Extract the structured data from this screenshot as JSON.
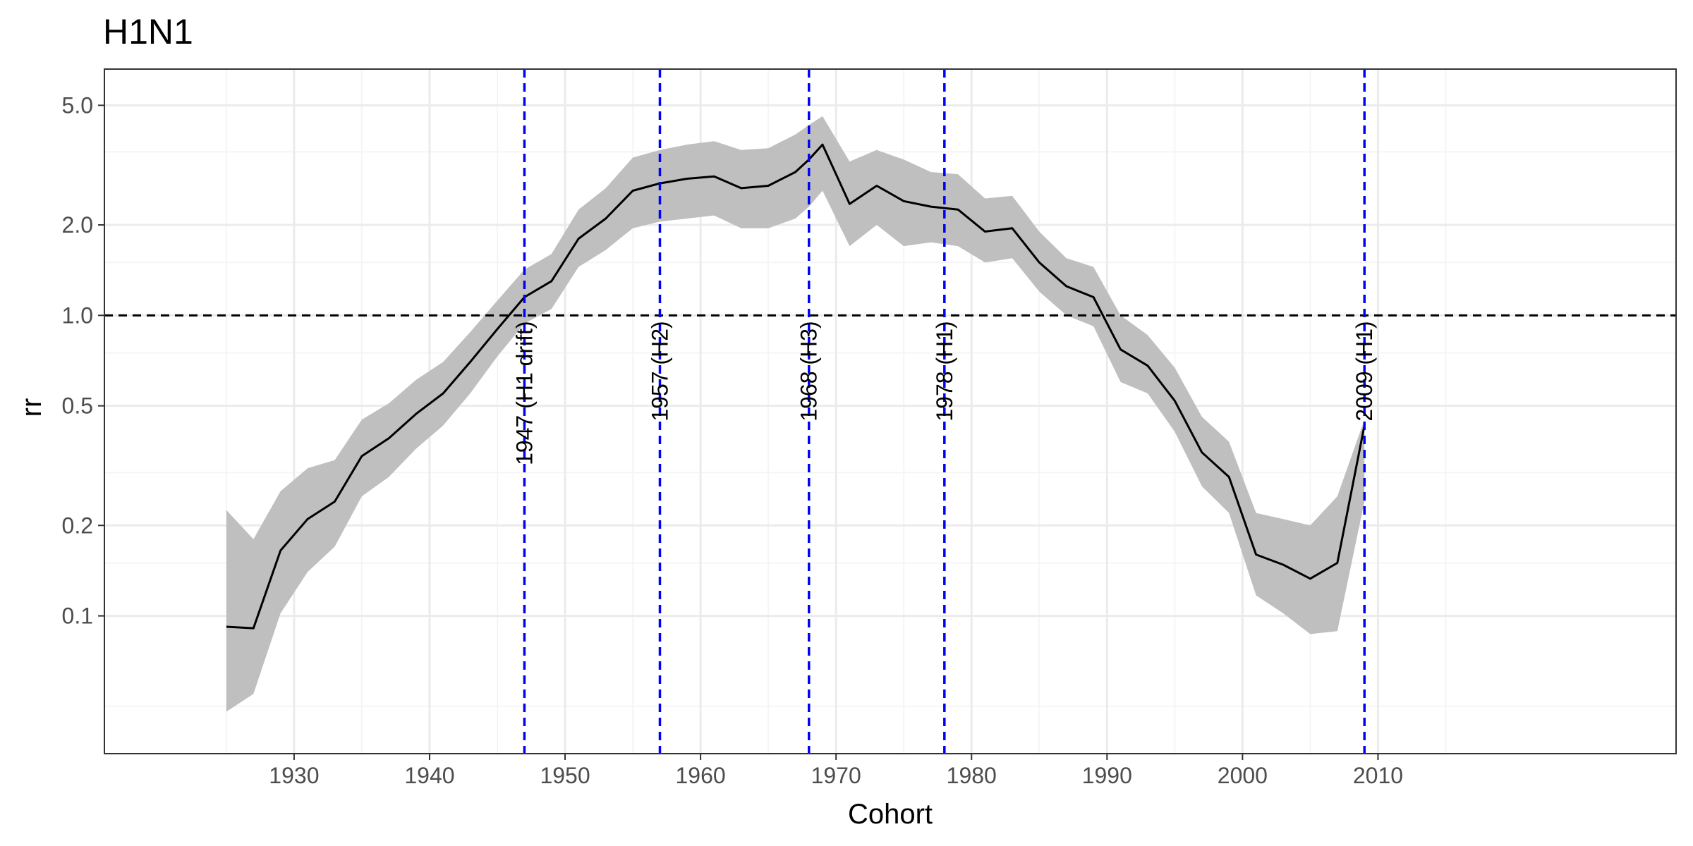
{
  "chart_data": {
    "type": "line",
    "title": "H1N1",
    "xlabel": "Cohort",
    "ylabel": "rr",
    "xlim": [
      1916,
      2032
    ],
    "ylim": [
      0.0348,
      6.6
    ],
    "y_scale": "log",
    "x_ticks": [
      1930,
      1940,
      1950,
      1960,
      1970,
      1980,
      1990,
      2000,
      2010
    ],
    "x_tick_labels": [
      "1930",
      "1940",
      "1950",
      "1960",
      "1970",
      "1980",
      "1990",
      "2000",
      "2010"
    ],
    "y_ticks": [
      0.1,
      0.2,
      0.5,
      1.0,
      2.0,
      5.0
    ],
    "y_tick_labels": [
      "0.1",
      "0.2",
      "0.5",
      "1.0",
      "2.0",
      "5.0"
    ],
    "y_minor_ticks": [
      0.05,
      0.15,
      0.3,
      0.75,
      1.5,
      3.5
    ],
    "grid": true,
    "colors": {
      "line": "#000000",
      "ribbon": "#bfbfbf",
      "event_lines": "#0000ff",
      "reference_line": "#000000",
      "grid_major": "#ebebeb",
      "grid_minor": "#f5f5f5",
      "panel_border": "#333333"
    },
    "reference_line": {
      "y": 1.0,
      "style": "dashed"
    },
    "event_lines": [
      {
        "x": 1947,
        "label": "1947 (H1 drift)"
      },
      {
        "x": 1957,
        "label": "1957 (H2)"
      },
      {
        "x": 1968,
        "label": "1968 (H3)"
      },
      {
        "x": 1978,
        "label": "1978 (H1)"
      },
      {
        "x": 2009,
        "label": "2009 (H1)"
      }
    ],
    "series": [
      {
        "x": [
          1925,
          1927,
          1929,
          1931,
          1933,
          1935,
          1937,
          1939,
          1941,
          1943,
          1945,
          1947,
          1949,
          1951,
          1953,
          1955,
          1957,
          1959,
          1961,
          1963,
          1965,
          1967,
          1968,
          1969,
          1971,
          1973,
          1975,
          1977,
          1979,
          1981,
          1983,
          1985,
          1987,
          1989,
          1991,
          1993,
          1995,
          1997,
          1999,
          2001,
          2003,
          2005,
          2007,
          2009
        ],
        "y": [
          0.092,
          0.091,
          0.165,
          0.21,
          0.24,
          0.34,
          0.39,
          0.47,
          0.55,
          0.7,
          0.9,
          1.15,
          1.3,
          1.8,
          2.1,
          2.6,
          2.75,
          2.85,
          2.9,
          2.65,
          2.7,
          3.0,
          3.3,
          3.7,
          2.35,
          2.7,
          2.4,
          2.3,
          2.25,
          1.9,
          1.95,
          1.5,
          1.25,
          1.15,
          0.77,
          0.68,
          0.52,
          0.35,
          0.29,
          0.16,
          0.148,
          0.133,
          0.15,
          0.43
        ],
        "lower": [
          0.048,
          0.055,
          0.102,
          0.14,
          0.17,
          0.25,
          0.29,
          0.36,
          0.43,
          0.55,
          0.73,
          0.94,
          1.05,
          1.45,
          1.65,
          1.95,
          2.05,
          2.1,
          2.15,
          1.95,
          1.95,
          2.1,
          2.3,
          2.6,
          1.7,
          2.0,
          1.7,
          1.75,
          1.7,
          1.5,
          1.55,
          1.2,
          1.0,
          0.92,
          0.6,
          0.55,
          0.41,
          0.27,
          0.22,
          0.117,
          0.102,
          0.087,
          0.089,
          0.24
        ],
        "upper": [
          0.225,
          0.18,
          0.26,
          0.31,
          0.33,
          0.45,
          0.51,
          0.61,
          0.7,
          0.88,
          1.12,
          1.42,
          1.6,
          2.25,
          2.65,
          3.35,
          3.55,
          3.7,
          3.8,
          3.55,
          3.6,
          4.0,
          4.3,
          4.6,
          3.25,
          3.55,
          3.3,
          3.0,
          2.95,
          2.45,
          2.5,
          1.9,
          1.55,
          1.45,
          1.0,
          0.86,
          0.67,
          0.46,
          0.38,
          0.22,
          0.21,
          0.2,
          0.25,
          0.45
        ]
      }
    ]
  }
}
